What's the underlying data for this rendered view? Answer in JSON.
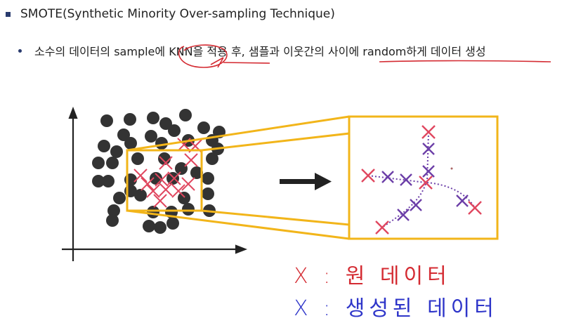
{
  "bullet1": {
    "text": "SMOTE(Synthetic Minority Over-sampling Technique)"
  },
  "bullet2": {
    "text": "소수의 데이터의 sample에 KNN을 적용 후, 샘플과 이웃간의 사이에 random하게 데이터 생성"
  },
  "legend": {
    "original": "X : 원 데이터",
    "generated": "X : 생성된 데이터"
  },
  "colors": {
    "majority_point": "#333333",
    "minority_x": "#e0475f",
    "generated_x": "#6c3fa8",
    "zoom_box": "#f2b51a",
    "annotation_red": "#d42b32",
    "annotation_blue": "#2e35c9"
  },
  "icons": [
    "right-arrow-icon",
    "axes"
  ]
}
